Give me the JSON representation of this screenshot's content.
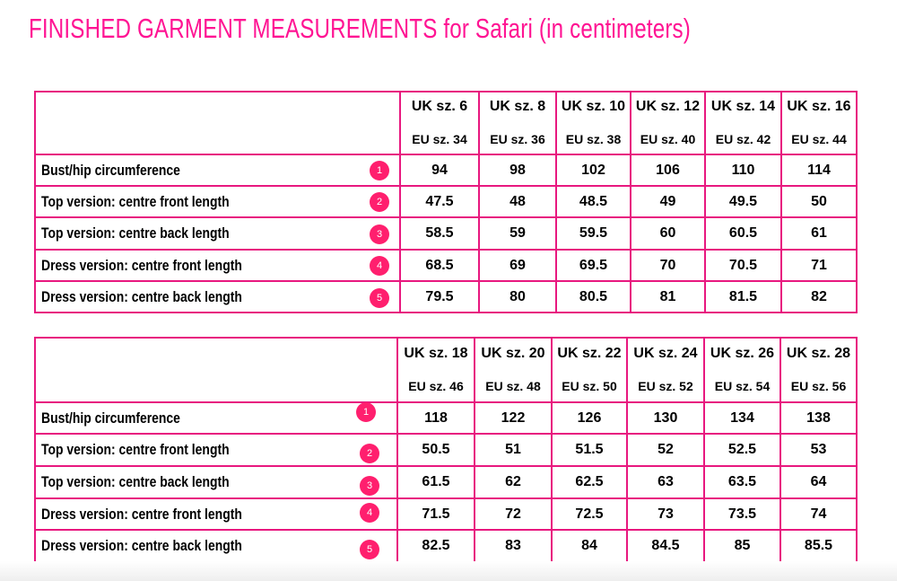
{
  "title": "FINISHED GARMENT MEASUREMENTS for Safari (in centimeters)",
  "accent_color": "#e8187f",
  "badge_color": "#ff1f6e",
  "tables": [
    {
      "sizes": [
        {
          "uk": "UK sz. 6",
          "eu": "EU sz. 34"
        },
        {
          "uk": "UK sz. 8",
          "eu": "EU sz. 36"
        },
        {
          "uk": "UK sz. 10",
          "eu": "EU sz. 38"
        },
        {
          "uk": "UK sz. 12",
          "eu": "EU sz. 40"
        },
        {
          "uk": "UK sz. 14",
          "eu": "EU sz. 42"
        },
        {
          "uk": "UK sz. 16",
          "eu": "EU sz. 44"
        }
      ],
      "rows": [
        {
          "label": "Bust/hip circumference",
          "badge": "1",
          "values": [
            "94",
            "98",
            "102",
            "106",
            "110",
            "114"
          ]
        },
        {
          "label": "Top version: centre front length",
          "badge": "2",
          "values": [
            "47.5",
            "48",
            "48.5",
            "49",
            "49.5",
            "50"
          ]
        },
        {
          "label": "Top version: centre back length",
          "badge": "3",
          "values": [
            "58.5",
            "59",
            "59.5",
            "60",
            "60.5",
            "61"
          ]
        },
        {
          "label": "Dress version: centre front length",
          "badge": "4",
          "values": [
            "68.5",
            "69",
            "69.5",
            "70",
            "70.5",
            "71"
          ]
        },
        {
          "label": "Dress version: centre back length",
          "badge": "5",
          "values": [
            "79.5",
            "80",
            "80.5",
            "81",
            "81.5",
            "82"
          ]
        }
      ]
    },
    {
      "sizes": [
        {
          "uk": "UK sz. 18",
          "eu": "EU sz. 46"
        },
        {
          "uk": "UK sz. 20",
          "eu": "EU sz. 48"
        },
        {
          "uk": "UK sz. 22",
          "eu": "EU sz. 50"
        },
        {
          "uk": "UK sz. 24",
          "eu": "EU sz. 52"
        },
        {
          "uk": "UK sz. 26",
          "eu": "EU sz. 54"
        },
        {
          "uk": "UK sz. 28",
          "eu": "EU sz. 56"
        }
      ],
      "rows": [
        {
          "label": "Bust/hip circumference",
          "badge": "1",
          "values": [
            "118",
            "122",
            "126",
            "130",
            "134",
            "138"
          ]
        },
        {
          "label": "Top version: centre front length",
          "badge": "2",
          "values": [
            "50.5",
            "51",
            "51.5",
            "52",
            "52.5",
            "53"
          ]
        },
        {
          "label": "Top version: centre back length",
          "badge": "3",
          "values": [
            "61.5",
            "62",
            "62.5",
            "63",
            "63.5",
            "64"
          ]
        },
        {
          "label": "Dress version: centre front length",
          "badge": "4",
          "values": [
            "71.5",
            "72",
            "72.5",
            "73",
            "73.5",
            "74"
          ]
        },
        {
          "label": "Dress version: centre back length",
          "badge": "5",
          "values": [
            "82.5",
            "83",
            "84",
            "84.5",
            "85",
            "85.5"
          ]
        }
      ]
    }
  ]
}
